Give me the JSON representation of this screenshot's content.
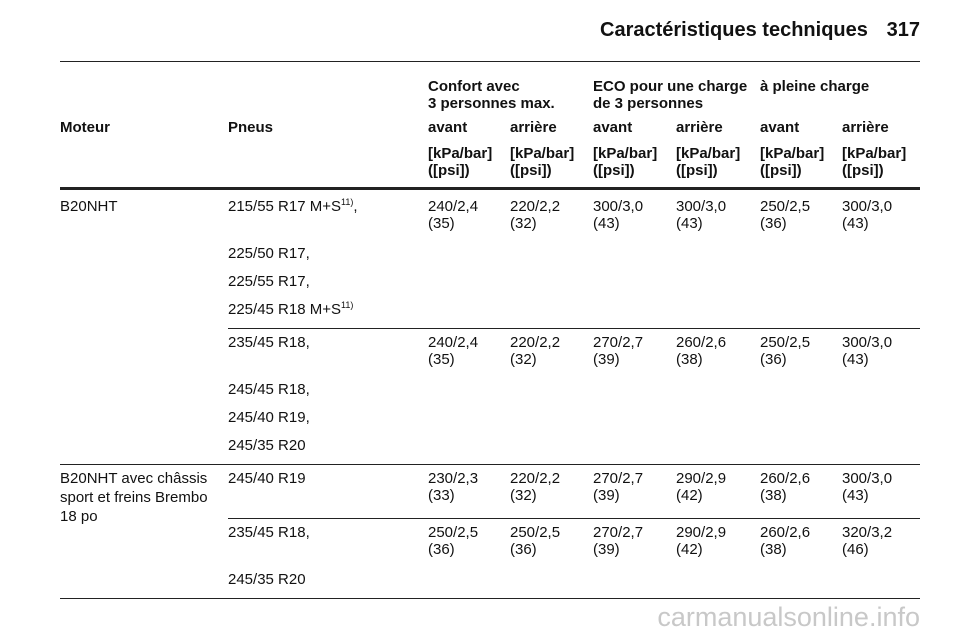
{
  "header": {
    "title": "Caractéristiques techniques",
    "page": "317"
  },
  "table": {
    "groups": [
      [
        "Confort avec",
        "3 personnes max."
      ],
      [
        "ECO pour une charge",
        "de 3 personnes"
      ],
      [
        "à pleine charge"
      ]
    ],
    "columns": [
      "Moteur",
      "Pneus",
      "avant",
      "arrière",
      "avant",
      "arrière",
      "avant",
      "arrière"
    ],
    "units": [
      [
        "[kPa/bar]",
        "([psi])"
      ],
      [
        "[kPa/bar]",
        "([psi])"
      ],
      [
        "[kPa/bar]",
        "([psi])"
      ],
      [
        "[kPa/bar]",
        "([psi])"
      ],
      [
        "[kPa/bar]",
        "([psi])"
      ],
      [
        "[kPa/bar]",
        "([psi])"
      ]
    ],
    "engines": [
      {
        "name": [
          "B20NHT"
        ],
        "rows": [
          {
            "tires": [
              {
                "text": "215/55 R17 M+S",
                "sup": "11)",
                "suffix": ","
              },
              {
                "text": "225/50 R17,"
              },
              {
                "text": "225/55 R17,"
              },
              {
                "text": "225/45 R18 M+S",
                "sup": "11)"
              }
            ],
            "pressures": [
              [
                "240/2,4",
                "(35)"
              ],
              [
                "220/2,2",
                "(32)"
              ],
              [
                "300/3,0",
                "(43)"
              ],
              [
                "300/3,0",
                "(43)"
              ],
              [
                "250/2,5",
                "(36)"
              ],
              [
                "300/3,0",
                "(43)"
              ]
            ]
          },
          {
            "tires": [
              {
                "text": "235/45 R18,"
              },
              {
                "text": "245/45 R18,"
              },
              {
                "text": "245/40 R19,"
              },
              {
                "text": "245/35 R20"
              }
            ],
            "pressures": [
              [
                "240/2,4",
                "(35)"
              ],
              [
                "220/2,2",
                "(32)"
              ],
              [
                "270/2,7",
                "(39)"
              ],
              [
                "260/2,6",
                "(38)"
              ],
              [
                "250/2,5",
                "(36)"
              ],
              [
                "300/3,0",
                "(43)"
              ]
            ]
          }
        ]
      },
      {
        "name": [
          "B20NHT avec châssis",
          "sport et freins Brembo",
          "18 po"
        ],
        "rows": [
          {
            "tires": [
              {
                "text": "245/40 R19"
              }
            ],
            "pressures": [
              [
                "230/2,3",
                "(33)"
              ],
              [
                "220/2,2",
                "(32)"
              ],
              [
                "270/2,7",
                "(39)"
              ],
              [
                "290/2,9",
                "(42)"
              ],
              [
                "260/2,6",
                "(38)"
              ],
              [
                "300/3,0",
                "(43)"
              ]
            ]
          },
          {
            "tires": [
              {
                "text": "235/45 R18,"
              },
              {
                "text": "245/35 R20"
              }
            ],
            "pressures": [
              [
                "250/2,5",
                "(36)"
              ],
              [
                "250/2,5",
                "(36)"
              ],
              [
                "270/2,7",
                "(39)"
              ],
              [
                "290/2,9",
                "(42)"
              ],
              [
                "260/2,6",
                "(38)"
              ],
              [
                "320/3,2",
                "(46)"
              ]
            ]
          }
        ]
      }
    ]
  },
  "watermark": "carmanualsonline.info"
}
